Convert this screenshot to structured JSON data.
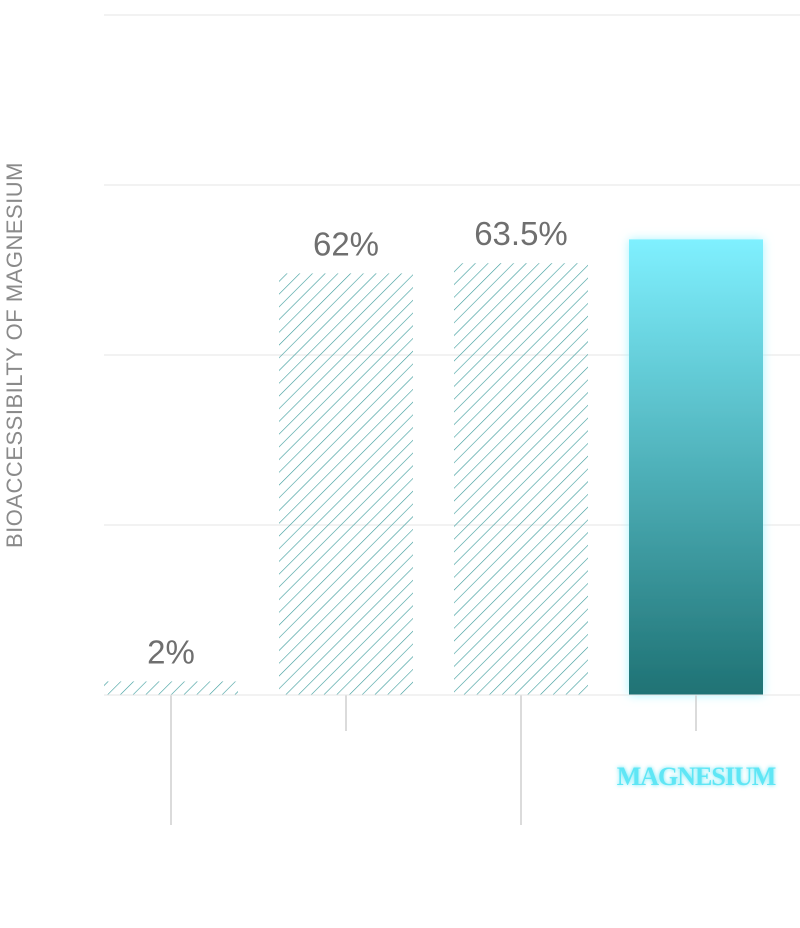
{
  "chart_data": {
    "type": "bar",
    "ylabel": "BIOACCESSIBILTY OF MAGNESIUM",
    "xlabel": "",
    "ylim": [
      0,
      100
    ],
    "grid": true,
    "categories": [
      "",
      "",
      "",
      "MAGNESIUM"
    ],
    "values": [
      2,
      62,
      63.5,
      67
    ],
    "data_labels": [
      "2%",
      "62%",
      "63.5%",
      ""
    ],
    "highlight_index": 3,
    "colors": {
      "hatch": "#3a9b9b",
      "highlight_top": "#7ff0ff",
      "highlight_bottom": "#1f7274",
      "highlight_label": "#5fe6f5",
      "grid": "#e6e6e6",
      "axis": "#cfcfcf",
      "value_text": "#6f6f6f"
    }
  }
}
